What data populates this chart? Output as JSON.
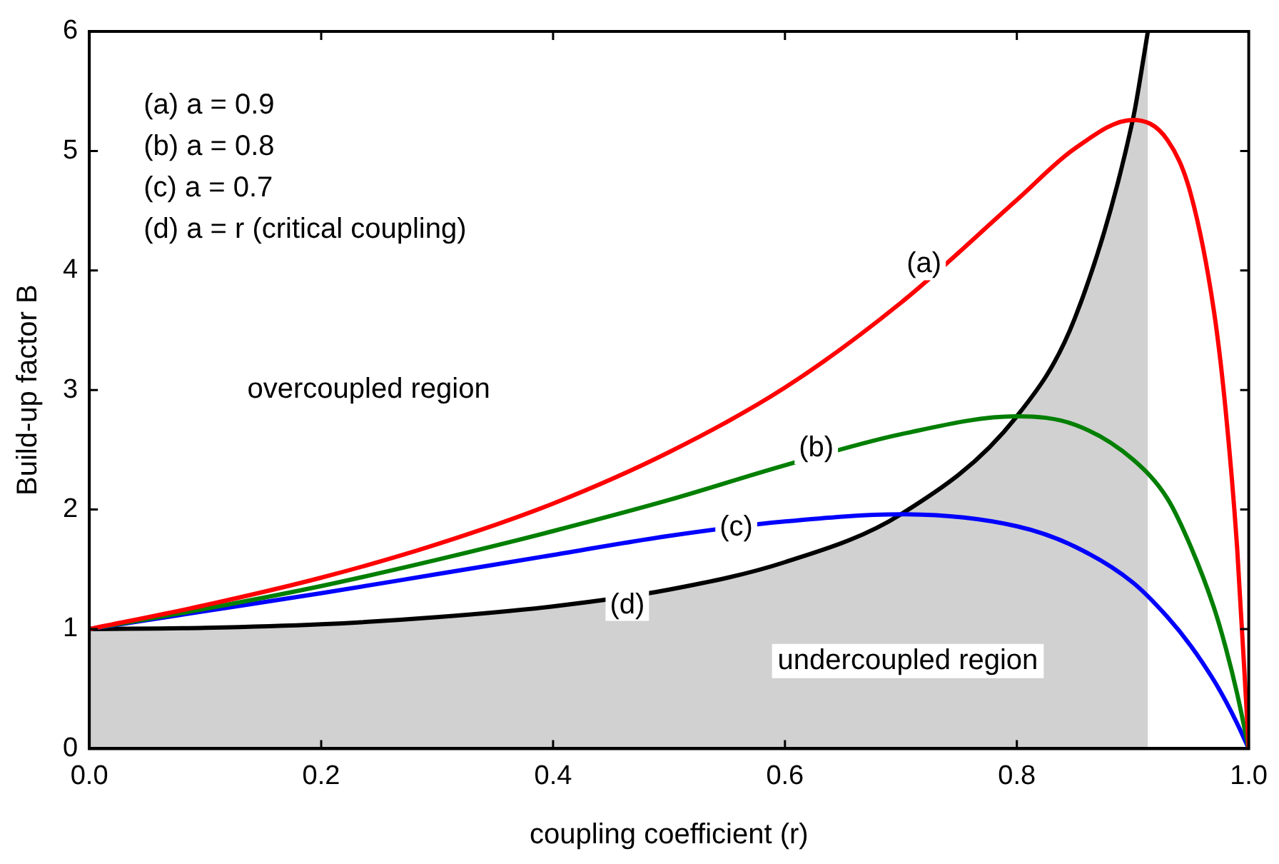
{
  "chart_data": {
    "type": "line",
    "xlabel": "coupling coefficient (r)",
    "ylabel": "Build-up factor B",
    "xlim": [
      0,
      1
    ],
    "xticks": [
      {
        "value": 0,
        "label": "0.0"
      },
      {
        "value": 0.2,
        "label": "0.2"
      },
      {
        "value": 0.4,
        "label": "0.4"
      },
      {
        "value": 0.6,
        "label": "0.6"
      },
      {
        "value": 0.8,
        "label": "0.8"
      },
      {
        "value": 1,
        "label": "1.0"
      }
    ],
    "ylim": [
      0,
      6
    ],
    "yticks": [
      0,
      1,
      2,
      3,
      4,
      5,
      6
    ],
    "grid": false,
    "legend": false,
    "marker": "none",
    "line_style": "solid",
    "series": [
      {
        "color": "#ff0000",
        "x": [
          0,
          0.1,
          0.2,
          0.3,
          0.4,
          0.5,
          0.6,
          0.7,
          0.8,
          0.85,
          0.9,
          0.93,
          0.95,
          0.97,
          0.98,
          0.99,
          1
        ],
        "values": [
          1,
          1.2,
          1.43,
          1.71,
          2.05,
          2.48,
          3.02,
          3.73,
          4.59,
          5.02,
          5.26,
          5.09,
          4.64,
          3.66,
          2.84,
          1.68,
          0
        ]
      },
      {
        "color": "#007f00",
        "x": [
          0,
          0.1,
          0.2,
          0.3,
          0.4,
          0.5,
          0.6,
          0.7,
          0.8,
          0.85,
          0.9,
          0.93,
          0.95,
          0.97,
          0.98,
          0.99,
          1
        ],
        "values": [
          1,
          1.17,
          1.36,
          1.58,
          1.82,
          2.08,
          2.37,
          2.63,
          2.78,
          2.71,
          2.42,
          2.09,
          1.69,
          1.18,
          0.85,
          0.46,
          0
        ]
      },
      {
        "color": "#0000ff",
        "x": [
          0,
          0.1,
          0.2,
          0.3,
          0.4,
          0.5,
          0.6,
          0.7,
          0.8,
          0.85,
          0.9,
          0.93,
          0.95,
          0.97,
          0.98,
          0.99,
          1
        ],
        "values": [
          1,
          1.15,
          1.3,
          1.46,
          1.62,
          1.78,
          1.9,
          1.96,
          1.86,
          1.69,
          1.39,
          1.1,
          0.86,
          0.57,
          0.4,
          0.21,
          0
        ]
      },
      {
        "type": "area",
        "color": "#000000",
        "x": [
          0,
          0.1,
          0.2,
          0.3,
          0.4,
          0.5,
          0.6,
          0.7,
          0.8,
          0.85,
          0.9,
          0.91,
          0.913
        ],
        "values": [
          1,
          1.01,
          1.04,
          1.1,
          1.19,
          1.33,
          1.56,
          1.96,
          2.78,
          3.6,
          5.26,
          5.82,
          6
        ]
      }
    ],
    "annotations": [
      "(a) a = 0.9",
      "(b) a = 0.8",
      "(c) a = 0.7",
      "(d) a = r (critical coupling)",
      {
        "text": "(a)",
        "x": 0.72,
        "y": 4.05
      },
      {
        "text": "(b)",
        "x": 0.627,
        "y": 2.51
      },
      {
        "text": "(c)",
        "x": 0.558,
        "y": 1.85
      },
      {
        "text": "(d)",
        "x": 0.464,
        "y": 1.2
      },
      "overcoupled region",
      "undercoupled region"
    ]
  }
}
